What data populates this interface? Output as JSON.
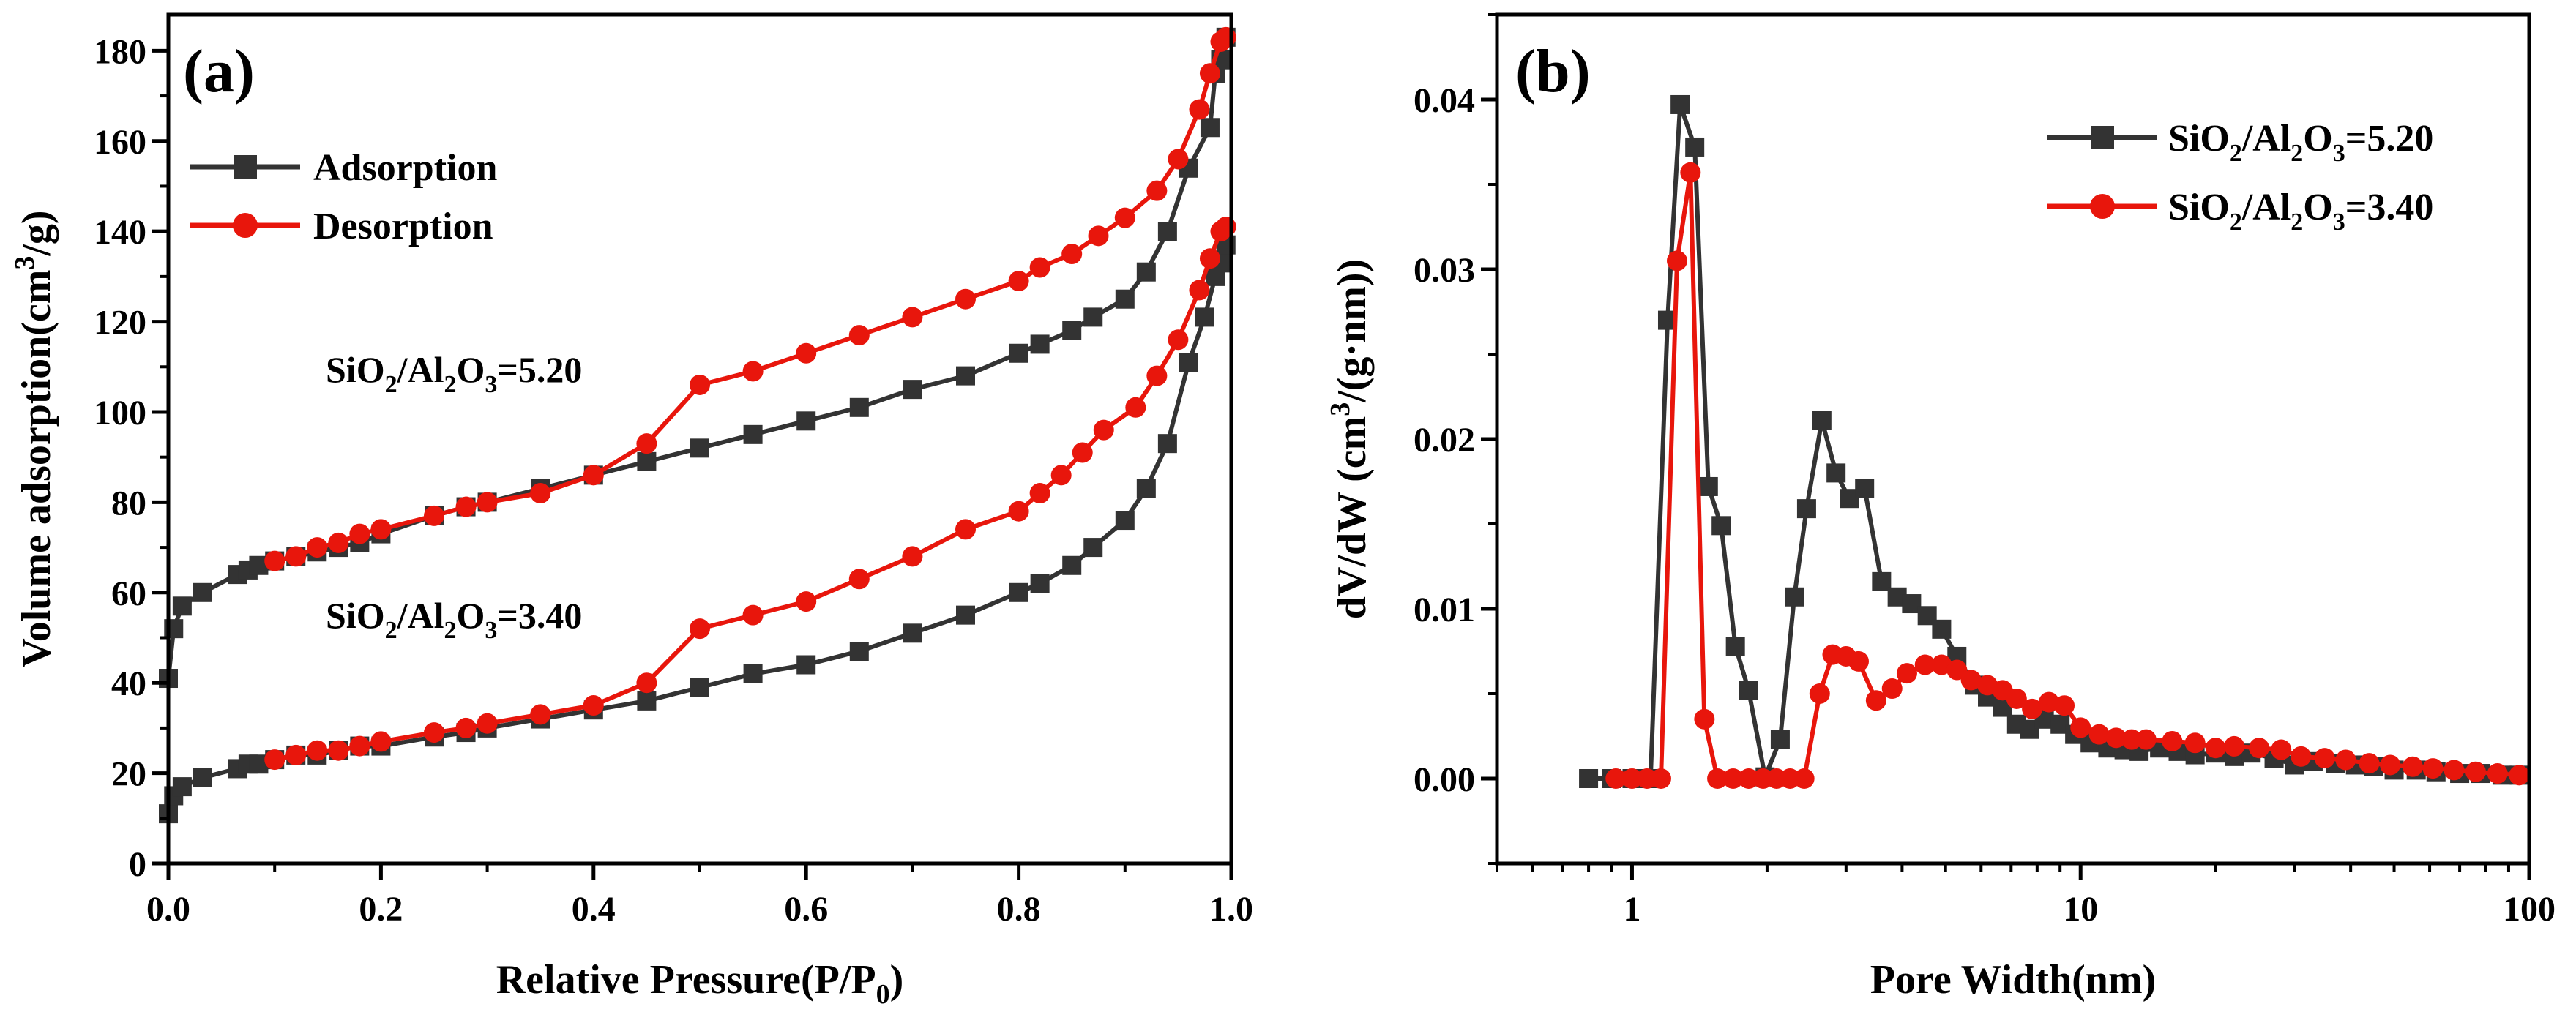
{
  "chart_data": [
    {
      "type": "line",
      "panel_label": "(a)",
      "xlabel": "Relative Pressure(P/P",
      "xlabel_sub": "0",
      "xlabel_end": ")",
      "ylabel": "Volume adsorption(cm",
      "ylabel_sup": "3",
      "ylabel_end": "/g)",
      "xlim": [
        0,
        1.0
      ],
      "ylim": [
        0,
        188
      ],
      "x_ticks": [
        "0.0",
        "0.2",
        "0.4",
        "0.6",
        "0.8",
        "1.0"
      ],
      "y_ticks": [
        "0",
        "20",
        "40",
        "60",
        "80",
        "100",
        "120",
        "140",
        "160",
        "180"
      ],
      "legend_placement": "top-left",
      "legend": [
        {
          "label": "Adsorption",
          "color": "#333333",
          "marker": "square"
        },
        {
          "label": "Desorption",
          "color": "#e8160c",
          "marker": "circle"
        }
      ],
      "annotations": [
        {
          "p1": "SiO",
          "s1": "2",
          "p2": "/Al",
          "s2": "2",
          "p3": "O",
          "s3": "3",
          "p4": "=5.20"
        },
        {
          "p1": "SiO",
          "s1": "2",
          "p2": "/Al",
          "s2": "2",
          "p3": "O",
          "s3": "3",
          "p4": "=3.40"
        }
      ],
      "series": [
        {
          "name": "Adsorption",
          "color": "#333333",
          "marker": "square",
          "x": [
            0.0,
            0.005,
            0.013,
            0.032,
            0.065,
            0.075,
            0.085,
            0.1,
            0.12,
            0.14,
            0.16,
            0.18,
            0.2,
            0.25,
            0.28,
            0.3,
            0.35,
            0.4,
            0.45,
            0.5,
            0.55,
            0.6,
            0.65,
            0.7,
            0.75,
            0.8,
            0.82,
            0.85,
            0.87,
            0.9,
            0.92,
            0.94,
            0.96,
            0.98,
            0.985,
            0.99,
            0.995
          ],
          "y": [
            41,
            52,
            57,
            60,
            64,
            65,
            66,
            67,
            68,
            69,
            70,
            71,
            73,
            77,
            79,
            80,
            83,
            86,
            89,
            92,
            95,
            98,
            101,
            105,
            108,
            113,
            115,
            118,
            121,
            125,
            131,
            140,
            154,
            163,
            175,
            178,
            183
          ]
        },
        {
          "name": "Desorption",
          "color": "#e8160c",
          "marker": "circle",
          "x": [
            0.995,
            0.99,
            0.98,
            0.97,
            0.95,
            0.93,
            0.9,
            0.875,
            0.85,
            0.82,
            0.8,
            0.75,
            0.7,
            0.65,
            0.6,
            0.55,
            0.5,
            0.45,
            0.4,
            0.35,
            0.3,
            0.28,
            0.25,
            0.2,
            0.18,
            0.16,
            0.14,
            0.12,
            0.1
          ],
          "y": [
            183,
            182,
            175,
            167,
            156,
            149,
            143,
            139,
            135,
            132,
            129,
            125,
            121,
            117,
            113,
            109,
            106,
            93,
            86,
            82,
            80,
            79,
            77,
            74,
            73,
            71,
            70,
            68,
            67
          ]
        },
        {
          "name": "Adsorption",
          "color": "#333333",
          "marker": "square",
          "x": [
            0.0,
            0.005,
            0.013,
            0.032,
            0.065,
            0.075,
            0.085,
            0.1,
            0.12,
            0.14,
            0.16,
            0.18,
            0.2,
            0.25,
            0.28,
            0.3,
            0.35,
            0.4,
            0.45,
            0.5,
            0.55,
            0.6,
            0.65,
            0.7,
            0.75,
            0.8,
            0.82,
            0.85,
            0.87,
            0.9,
            0.92,
            0.94,
            0.96,
            0.975,
            0.985,
            0.99,
            0.995
          ],
          "y": [
            11,
            15,
            17,
            19,
            21,
            22,
            22,
            23,
            24,
            24,
            25,
            26,
            26,
            28,
            29,
            30,
            32,
            34,
            36,
            39,
            42,
            44,
            47,
            51,
            55,
            60,
            62,
            66,
            70,
            76,
            83,
            93,
            111,
            121,
            130,
            133,
            137
          ]
        },
        {
          "name": "Desorption",
          "color": "#e8160c",
          "marker": "circle",
          "x": [
            0.995,
            0.99,
            0.98,
            0.97,
            0.95,
            0.93,
            0.91,
            0.88,
            0.86,
            0.84,
            0.82,
            0.8,
            0.75,
            0.7,
            0.65,
            0.6,
            0.55,
            0.5,
            0.45,
            0.4,
            0.35,
            0.3,
            0.28,
            0.25,
            0.2,
            0.18,
            0.16,
            0.14,
            0.12,
            0.1
          ],
          "y": [
            141,
            140,
            134,
            127,
            116,
            108,
            101,
            96,
            91,
            86,
            82,
            78,
            74,
            68,
            63,
            58,
            55,
            52,
            40,
            35,
            33,
            31,
            30,
            29,
            27,
            26,
            25,
            25,
            24,
            23
          ]
        }
      ]
    },
    {
      "type": "line",
      "panel_label": "(b)",
      "xlabel": "Pore Width(nm)",
      "ylabel": "dV/dW (cm",
      "ylabel_sup": "3",
      "ylabel_end": "/(g·nm))",
      "x_scale": "log",
      "xlim": [
        0.5,
        100
      ],
      "ylim": [
        -0.005,
        0.045
      ],
      "x_ticks": [
        "1",
        "10",
        "100"
      ],
      "y_ticks": [
        "0.00",
        "0.01",
        "0.02",
        "0.03",
        "0.04"
      ],
      "legend_placement": "top-right",
      "legend": [
        {
          "p1": "SiO",
          "s1": "2",
          "p2": "/Al",
          "s2": "2",
          "p3": "O",
          "s3": "3",
          "p4": "=5.20",
          "color": "#333333",
          "marker": "square"
        },
        {
          "p1": "SiO",
          "s1": "2",
          "p2": "/Al",
          "s2": "2",
          "p3": "O",
          "s3": "3",
          "p4": "=3.40",
          "color": "#e8160c",
          "marker": "circle"
        }
      ],
      "series": [
        {
          "color": "#333333",
          "marker": "square",
          "x": [
            0.8,
            0.9,
            1.0,
            1.1,
            1.2,
            1.28,
            1.38,
            1.48,
            1.58,
            1.7,
            1.82,
            1.98,
            2.14,
            2.3,
            2.45,
            2.65,
            2.85,
            3.05,
            3.3,
            3.6,
            3.9,
            4.2,
            4.55,
            4.9,
            5.3,
            5.8,
            6.2,
            6.7,
            7.2,
            7.7,
            8.3,
            9.0,
            9.7,
            10.5,
            11.5,
            12.5,
            13.5,
            15,
            16.5,
            18,
            20,
            22,
            24,
            27,
            30,
            33,
            37,
            41,
            45,
            50,
            56,
            62,
            70,
            78,
            87,
            95
          ],
          "y": [
            0.0,
            0.0,
            0.0,
            0.0,
            0.027,
            0.0397,
            0.0372,
            0.0172,
            0.0149,
            0.0078,
            0.0052,
            0.0001,
            0.0023,
            0.0107,
            0.0159,
            0.0211,
            0.018,
            0.0165,
            0.0171,
            0.0116,
            0.0107,
            0.0103,
            0.0096,
            0.0088,
            0.0072,
            0.0055,
            0.0048,
            0.0042,
            0.0032,
            0.0029,
            0.0035,
            0.0032,
            0.0026,
            0.0021,
            0.0018,
            0.0017,
            0.0016,
            0.0018,
            0.0016,
            0.0014,
            0.0015,
            0.0013,
            0.0015,
            0.0012,
            0.0008,
            0.001,
            0.0009,
            0.0008,
            0.0007,
            0.0005,
            0.0005,
            0.0004,
            0.0003,
            0.0003,
            0.0002,
            0.0002
          ]
        },
        {
          "color": "#e8160c",
          "marker": "circle",
          "x": [
            0.92,
            1.0,
            1.08,
            1.16,
            1.26,
            1.35,
            1.45,
            1.55,
            1.68,
            1.82,
            1.96,
            2.1,
            2.25,
            2.42,
            2.62,
            2.8,
            3.0,
            3.2,
            3.5,
            3.8,
            4.1,
            4.5,
            4.9,
            5.3,
            5.7,
            6.2,
            6.7,
            7.2,
            7.8,
            8.5,
            9.2,
            10,
            11,
            12,
            13,
            14,
            16,
            18,
            20,
            22,
            25,
            28,
            31,
            35,
            39,
            44,
            49,
            55,
            61,
            68,
            76,
            85,
            95
          ],
          "y": [
            0.0,
            0.0,
            0.0,
            0.0,
            0.0305,
            0.0357,
            0.0035,
            0.0,
            0.0,
            0.0,
            0.0,
            0.0,
            0.0,
            0.0,
            0.005,
            0.0073,
            0.0072,
            0.0069,
            0.0046,
            0.0053,
            0.0062,
            0.0067,
            0.0067,
            0.0064,
            0.0058,
            0.0055,
            0.0052,
            0.0047,
            0.0041,
            0.0045,
            0.0043,
            0.003,
            0.0026,
            0.0024,
            0.0023,
            0.0023,
            0.0022,
            0.0021,
            0.0018,
            0.0019,
            0.0018,
            0.0017,
            0.0013,
            0.0012,
            0.0011,
            0.0009,
            0.0008,
            0.0007,
            0.0006,
            0.0005,
            0.0004,
            0.0003,
            0.0002
          ]
        }
      ]
    }
  ]
}
